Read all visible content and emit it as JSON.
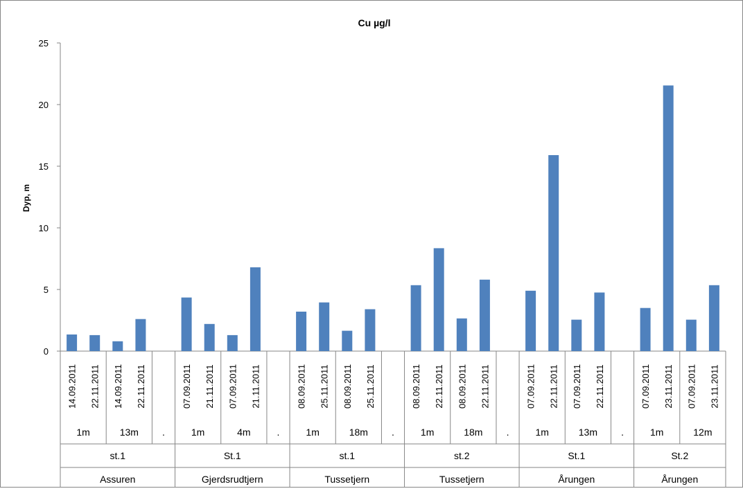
{
  "chart_data": {
    "type": "bar",
    "title": "Cu µg/l",
    "ylabel": "Dyp, m",
    "xlabel": "",
    "ylim": [
      0,
      25
    ],
    "yticks": [
      0,
      5,
      10,
      15,
      20,
      25
    ],
    "grid": false,
    "legend": "none",
    "bar_color": "#4f81bd",
    "groups": [
      {
        "lake": "Assuren",
        "station": "st.1",
        "depths": [
          {
            "depth": "1m",
            "dates": [
              "14.09.2011",
              "22.11.2011"
            ],
            "values": [
              1.35,
              1.3
            ]
          },
          {
            "depth": "13m",
            "dates": [
              "14.09.2011",
              "22.11.2011"
            ],
            "values": [
              0.8,
              2.6
            ]
          }
        ],
        "spacer": "."
      },
      {
        "lake": "Gjerdsrudtjern",
        "station": "St.1",
        "depths": [
          {
            "depth": "1m",
            "dates": [
              "07.09.2011",
              "21.11.2011"
            ],
            "values": [
              4.35,
              2.2
            ]
          },
          {
            "depth": "4m",
            "dates": [
              "07.09.2011",
              "21.11.2011"
            ],
            "values": [
              1.3,
              6.8
            ]
          }
        ],
        "spacer": "."
      },
      {
        "lake": "Tussetjern",
        "station": "st.1",
        "depths": [
          {
            "depth": "1m",
            "dates": [
              "08.09.2011",
              "25.11.2011"
            ],
            "values": [
              3.2,
              3.95
            ]
          },
          {
            "depth": "18m",
            "dates": [
              "08.09.2011",
              "25.11.2011"
            ],
            "values": [
              1.65,
              3.4
            ]
          }
        ],
        "spacer": "."
      },
      {
        "lake": "Tussetjern",
        "station": "st.2",
        "depths": [
          {
            "depth": "1m",
            "dates": [
              "08.09.2011",
              "22.11.2011"
            ],
            "values": [
              5.35,
              8.35
            ]
          },
          {
            "depth": "18m",
            "dates": [
              "08.09.2011",
              "22.11.2011"
            ],
            "values": [
              2.65,
              5.8
            ]
          }
        ],
        "spacer": "."
      },
      {
        "lake": "Årungen",
        "station": "St.1",
        "depths": [
          {
            "depth": "1m",
            "dates": [
              "07.09.2011",
              "22.11.2011"
            ],
            "values": [
              4.9,
              15.9
            ]
          },
          {
            "depth": "13m",
            "dates": [
              "07.09.2011",
              "22.11.2011"
            ],
            "values": [
              2.55,
              4.75
            ]
          }
        ],
        "spacer": "."
      },
      {
        "lake": "Årungen",
        "station": "St.2",
        "depths": [
          {
            "depth": "1m",
            "dates": [
              "07.09.2011",
              "23.11.2011"
            ],
            "values": [
              3.5,
              21.55
            ]
          },
          {
            "depth": "12m",
            "dates": [
              "07.09.2011",
              "23.11.2011"
            ],
            "values": [
              2.55,
              5.35
            ]
          }
        ],
        "spacer": null
      }
    ]
  }
}
